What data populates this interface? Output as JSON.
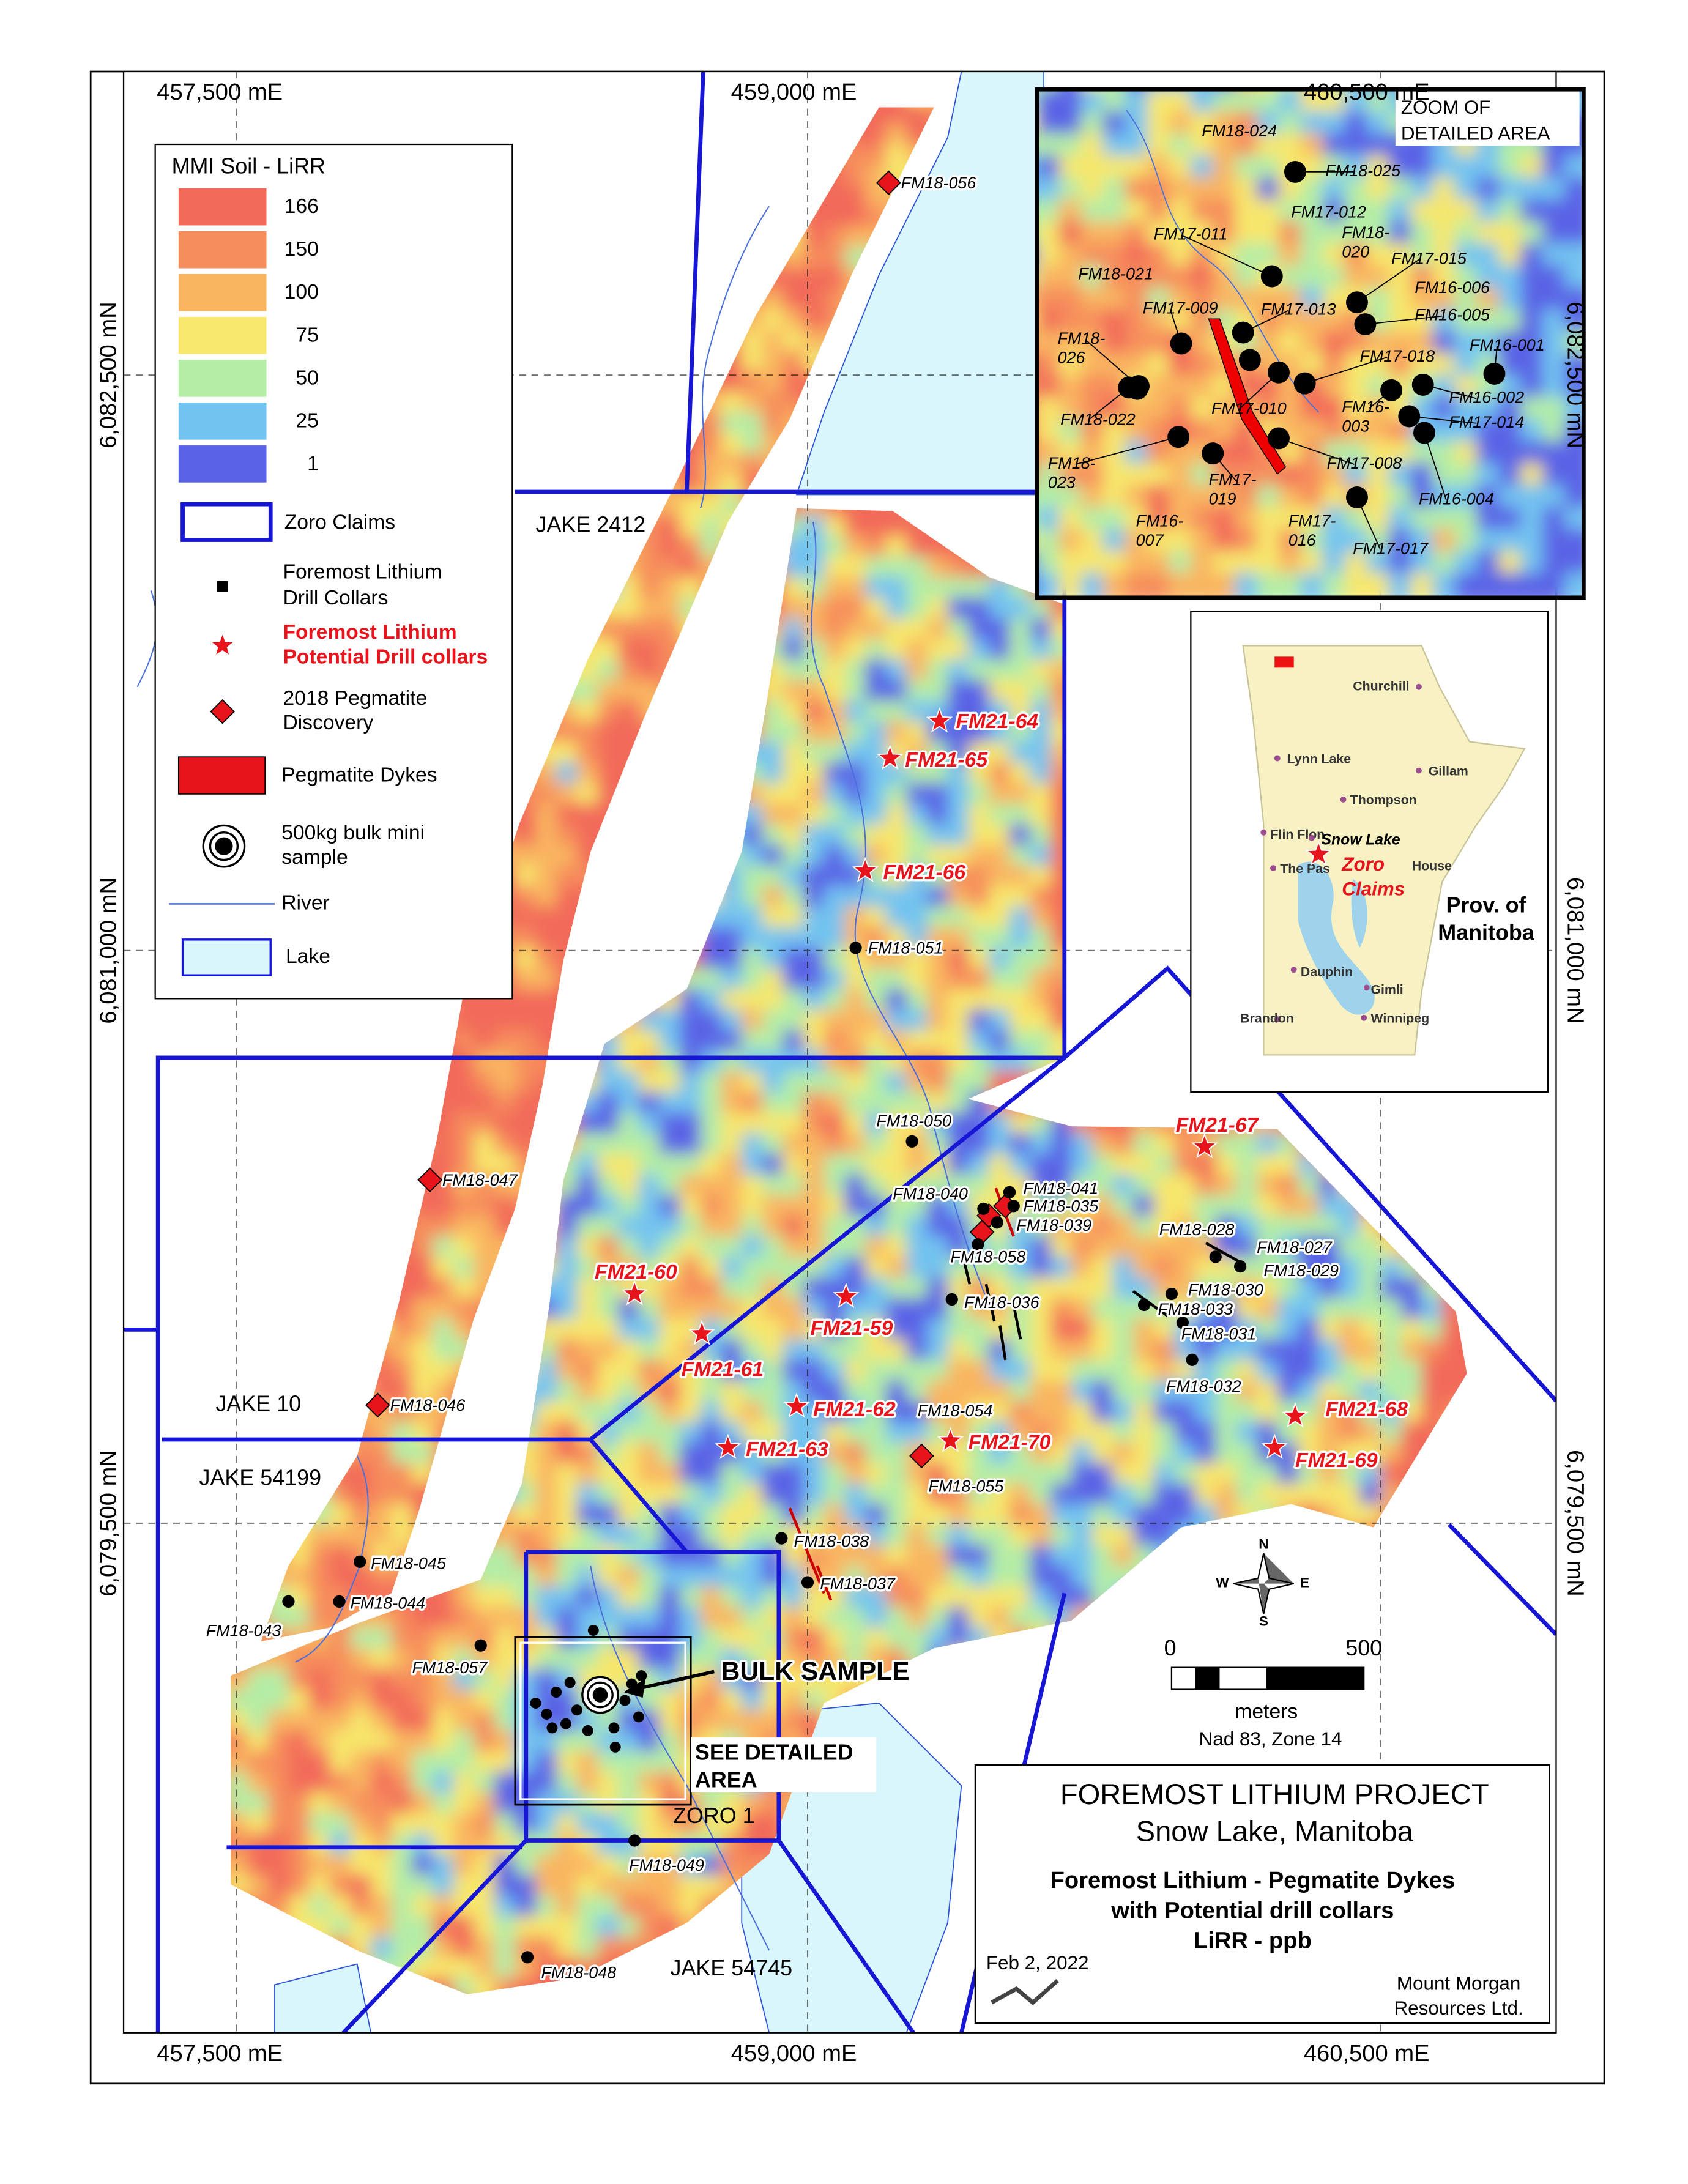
{
  "map": {
    "grid_labels": {
      "easting": [
        "457,500 mE",
        "459,000 mE",
        "460,500 mE"
      ],
      "northing": [
        "6,082,500 mN",
        "6,081,000 mN",
        "6,079,500 mN"
      ]
    },
    "legend": {
      "title": "MMI Soil - LiRR",
      "scale": [
        "166",
        "150",
        "100",
        "75",
        "50",
        "25",
        "1"
      ],
      "items": {
        "zoro_claims": "Zoro Claims",
        "drill_collars": [
          "Foremost Lithium",
          "Drill Collars"
        ],
        "potential_collars": [
          "Foremost Lithium",
          "Potential Drill collars"
        ],
        "discovery": [
          "2018 Pegmatite",
          "Discovery"
        ],
        "dykes": "Pegmatite Dykes",
        "bulk": [
          "500kg bulk mini",
          "sample"
        ],
        "river": "River",
        "lake": "Lake"
      }
    },
    "claims": [
      "JAKE 2412",
      "JAKE 10",
      "JAKE 54199",
      "ZORO 1",
      "JAKE 54745"
    ],
    "drill_collars": [
      "FM18-051",
      "FM18-050",
      "FM18-040",
      "FM18-041",
      "FM18-035",
      "FM18-039",
      "FM18-058",
      "FM18-036",
      "FM18-028",
      "FM18-027",
      "FM18-029",
      "FM18-030",
      "FM18-033",
      "FM18-031",
      "FM18-032",
      "FM18-054",
      "FM18-038",
      "FM18-037",
      "FM18-045",
      "FM18-044",
      "FM18-043",
      "FM18-057",
      "FM18-049",
      "FM18-048"
    ],
    "potential_drill_collars": [
      "FM21-64",
      "FM21-65",
      "FM21-66",
      "FM21-67",
      "FM21-60",
      "FM21-59",
      "FM21-61",
      "FM21-62",
      "FM21-63",
      "FM21-70",
      "FM21-68",
      "FM21-69"
    ],
    "pegmatite_discoveries": [
      "FM18-056",
      "FM18-047",
      "FM18-046",
      "FM18-055"
    ],
    "bulk_sample_label": "BULK SAMPLE",
    "detailed_area_label": [
      "SEE DETAILED",
      "AREA"
    ]
  },
  "zoom": {
    "title": [
      "ZOOM OF",
      "DETAILED AREA"
    ],
    "collars": [
      [
        "FM18-024"
      ],
      [
        "FM18-025"
      ],
      [
        "FM17-011"
      ],
      [
        "FM17-012"
      ],
      [
        "FM18-",
        "020"
      ],
      [
        "FM17-015"
      ],
      [
        "FM16-006"
      ],
      [
        "FM16-005"
      ],
      [
        "FM18-021"
      ],
      [
        "FM17-009"
      ],
      [
        "FM17-013"
      ],
      [
        "FM18-",
        "026"
      ],
      [
        "FM16-001"
      ],
      [
        "FM17-018"
      ],
      [
        "FM16-002"
      ],
      [
        "FM18-022"
      ],
      [
        "FM17-010"
      ],
      [
        "FM16-",
        "003"
      ],
      [
        "FM17-014"
      ],
      [
        "FM18-",
        "023"
      ],
      [
        "FM17-008"
      ],
      [
        "FM17-",
        "019"
      ],
      [
        "FM16-004"
      ],
      [
        "FM16-",
        "007"
      ],
      [
        "FM17-",
        "016"
      ],
      [
        "FM17-017"
      ]
    ]
  },
  "inset": {
    "places": [
      "Churchill",
      "Lynn Lake",
      "Gillam",
      "Thompson",
      "Flin Flon",
      "Snow Lake",
      "The Pas",
      "House",
      "Dauphin",
      "Gimli",
      "Brandon",
      "Winnipeg"
    ],
    "claims_label": [
      "Zoro",
      "Claims"
    ],
    "title": [
      "Prov. of",
      "Manitoba"
    ]
  },
  "scale_bar": {
    "start": "0",
    "end": "500",
    "unit": "meters",
    "datum": "Nad 83, Zone 14"
  },
  "compass": {
    "north": "N",
    "south": "S",
    "east": "E",
    "west": "W"
  },
  "title_block": {
    "title": "FOREMOST LITHIUM PROJECT",
    "subtitle": "Snow Lake, Manitoba",
    "description": [
      "Foremost Lithium - Pegmatite Dykes",
      "with Potential drill collars",
      "LiRR - ppb"
    ],
    "date": "Feb 2, 2022",
    "company": [
      "Mount Morgan",
      "Resources Ltd."
    ]
  }
}
